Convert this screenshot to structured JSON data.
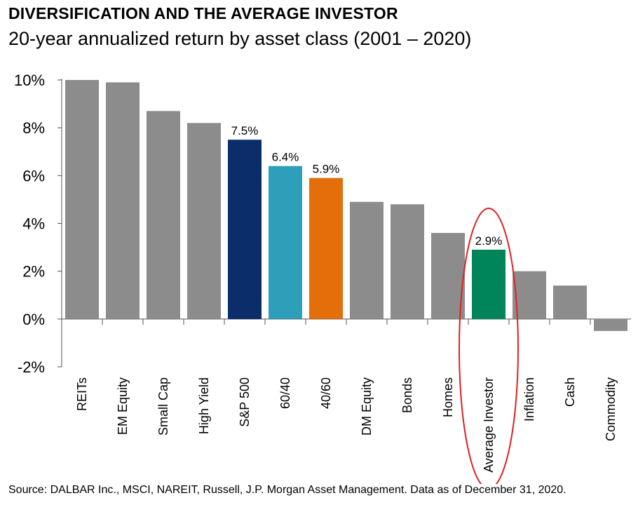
{
  "title": "DIVERSIFICATION AND THE AVERAGE INVESTOR",
  "subtitle": "20-year annualized return by asset class (2001 – 2020)",
  "source": "Source: DALBAR Inc., MSCI, NAREIT, Russell, J.P. Morgan Asset Management. Data as of December 31, 2020.",
  "colors": {
    "default_bar": "#8c8c8c",
    "sp500": "#0b2d6a",
    "sixty_forty": "#2d9fb8",
    "forty_sixty": "#e46e0a",
    "average_investor": "#00855a",
    "highlight_ellipse": "#e02020"
  },
  "chart_data": {
    "type": "bar",
    "categories": [
      "REITs",
      "EM Equity",
      "Small Cap",
      "High Yield",
      "S&P 500",
      "60/40",
      "40/60",
      "DM Equity",
      "Bonds",
      "Homes",
      "Average Investor",
      "Inflation",
      "Cash",
      "Commodity"
    ],
    "values": [
      10.0,
      9.9,
      8.7,
      8.2,
      7.5,
      6.4,
      5.9,
      4.9,
      4.8,
      3.6,
      2.9,
      2.0,
      1.4,
      -0.5
    ],
    "data_labels": [
      "",
      "",
      "",
      "",
      "7.5%",
      "6.4%",
      "5.9%",
      "",
      "",
      "",
      "2.9%",
      "",
      "",
      ""
    ],
    "bar_colors": [
      "#8c8c8c",
      "#8c8c8c",
      "#8c8c8c",
      "#8c8c8c",
      "#0b2d6a",
      "#2d9fb8",
      "#e46e0a",
      "#8c8c8c",
      "#8c8c8c",
      "#8c8c8c",
      "#00855a",
      "#8c8c8c",
      "#8c8c8c",
      "#8c8c8c"
    ],
    "yticks": [
      10,
      8,
      6,
      4,
      2,
      0,
      -2
    ],
    "ytick_labels": [
      "10%",
      "8%",
      "6%",
      "4%",
      "2%",
      "0%",
      "-2%"
    ],
    "ylim": [
      -2,
      10
    ],
    "highlighted_category": "Average Investor",
    "grid": false
  }
}
